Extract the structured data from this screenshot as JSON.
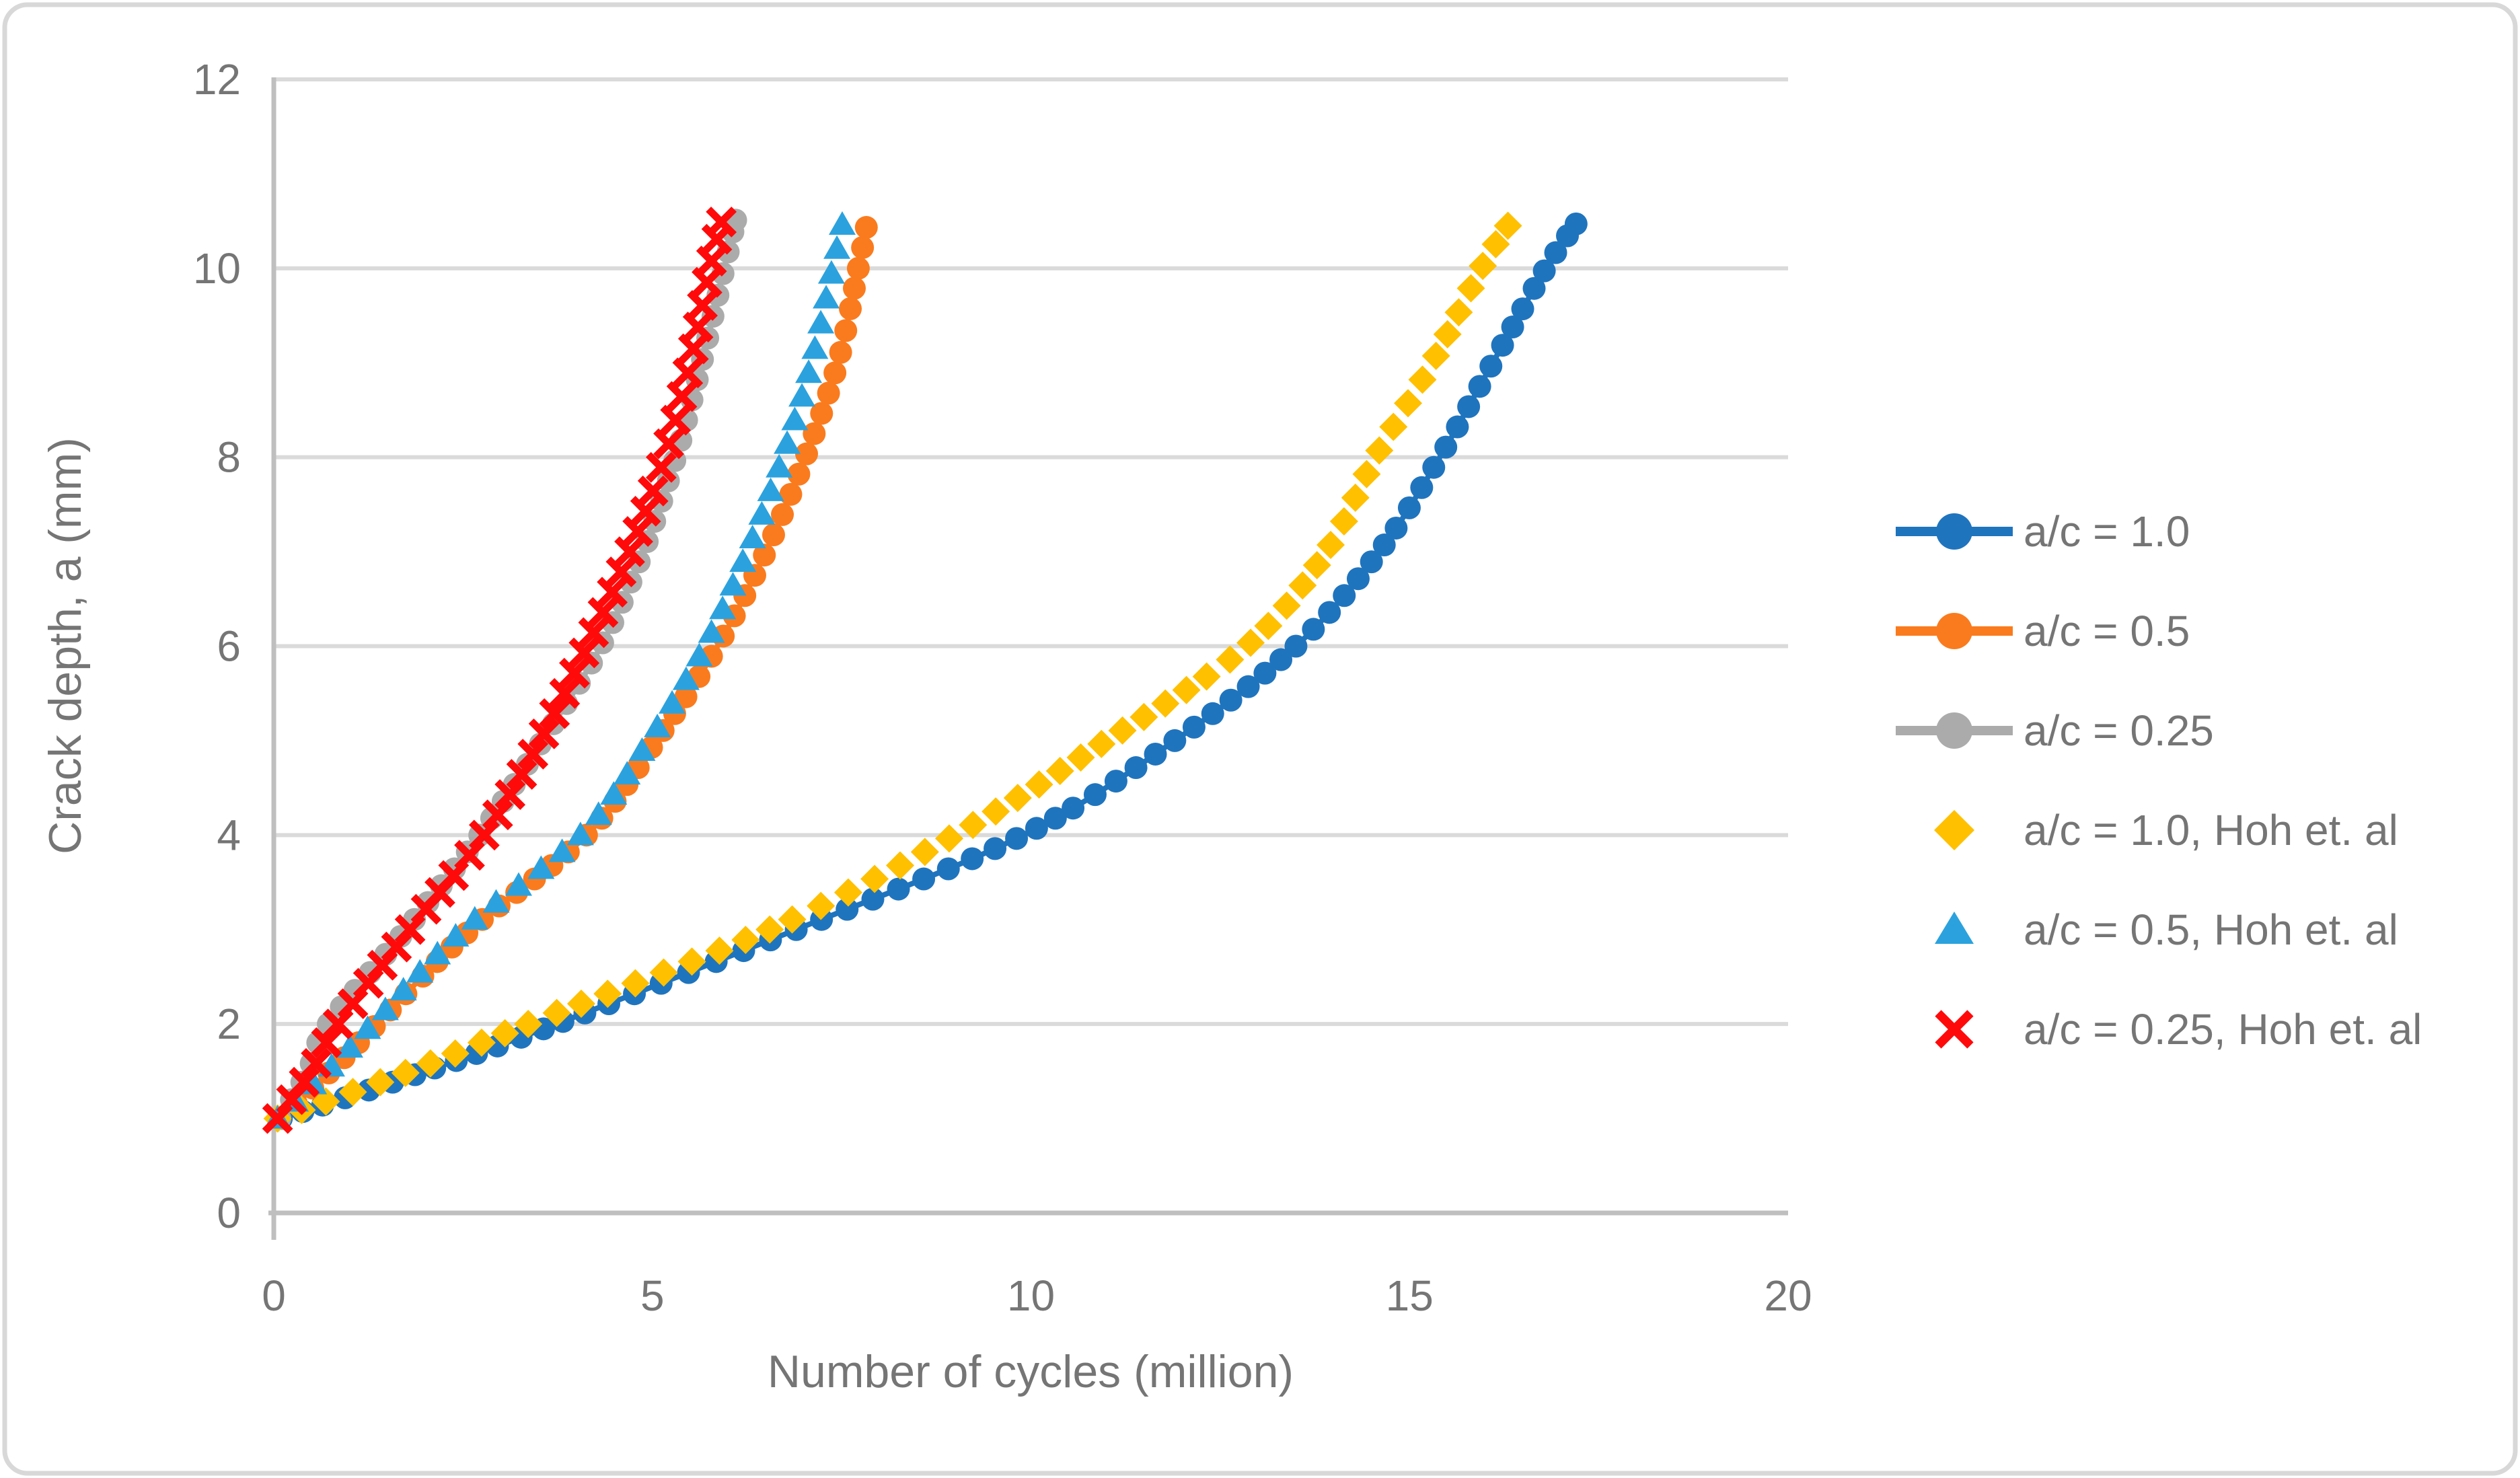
{
  "figure": {
    "background": "#FFFFFF",
    "border_color": "#D8D8D8",
    "grid_color": "#DADADA",
    "axis_color": "#BFBFBF",
    "text_color": "#757575"
  },
  "chart_data": {
    "type": "line",
    "title": "",
    "xlabel": "Number of cycles (million)",
    "ylabel": "Crack depth, a (mm)",
    "xlim": [
      0,
      20
    ],
    "ylim": [
      0,
      12
    ],
    "xticks": [
      0,
      5,
      10,
      15,
      20
    ],
    "yticks": [
      0,
      2,
      4,
      6,
      8,
      10,
      12
    ],
    "grid": "horizontal-only",
    "legend_position": "right-middle",
    "series": [
      {
        "name": "a/c = 1.0",
        "color": "#1F74BE",
        "marker": "circle",
        "line": true,
        "points": [
          [
            0.1,
            1.0
          ],
          [
            2.0,
            1.5
          ],
          [
            3.73,
            2.0
          ],
          [
            6.9,
            3.0
          ],
          [
            9.9,
            4.0
          ],
          [
            11.9,
            5.0
          ],
          [
            13.5,
            6.0
          ],
          [
            14.6,
            7.0
          ],
          [
            15.4,
            8.0
          ],
          [
            16.1,
            9.0
          ],
          [
            16.8,
            10.0
          ],
          [
            17.2,
            10.47
          ]
        ]
      },
      {
        "name": "a/c = 0.5",
        "color": "#FA7B1E",
        "marker": "circle",
        "line": true,
        "points": [
          [
            0.08,
            1.0
          ],
          [
            0.75,
            1.5
          ],
          [
            1.36,
            2.0
          ],
          [
            2.6,
            3.0
          ],
          [
            4.13,
            4.0
          ],
          [
            5.05,
            5.0
          ],
          [
            5.86,
            6.0
          ],
          [
            6.5,
            7.0
          ],
          [
            7.02,
            8.0
          ],
          [
            7.45,
            9.0
          ],
          [
            7.72,
            10.0
          ],
          [
            7.83,
            10.45
          ]
        ]
      },
      {
        "name": "a/c = 0.25",
        "color": "#ABABAB",
        "marker": "circle",
        "line": true,
        "points": [
          [
            0.08,
            1.0
          ],
          [
            0.45,
            1.5
          ],
          [
            0.72,
            2.0
          ],
          [
            1.75,
            3.0
          ],
          [
            2.72,
            4.0
          ],
          [
            3.55,
            5.0
          ],
          [
            4.32,
            6.0
          ],
          [
            4.88,
            7.0
          ],
          [
            5.31,
            8.0
          ],
          [
            5.65,
            9.0
          ],
          [
            5.95,
            10.0
          ],
          [
            6.1,
            10.51
          ]
        ]
      },
      {
        "name": "a/c = 1.0, Hoh et. al",
        "color": "#FFC000",
        "marker": "diamond",
        "line": false,
        "points": [
          [
            0.05,
            1.0
          ],
          [
            1.8,
            1.5
          ],
          [
            3.36,
            2.0
          ],
          [
            6.55,
            3.0
          ],
          [
            9.0,
            4.0
          ],
          [
            11.0,
            5.0
          ],
          [
            12.85,
            6.0
          ],
          [
            13.9,
            7.0
          ],
          [
            14.55,
            8.0
          ],
          [
            15.3,
            9.0
          ],
          [
            15.95,
            10.0
          ],
          [
            16.3,
            10.45
          ]
        ]
      },
      {
        "name": "a/c = 0.5, Hoh et. al",
        "color": "#2BA2DE",
        "marker": "triangle",
        "line": false,
        "points": [
          [
            0.05,
            1.0
          ],
          [
            0.7,
            1.5
          ],
          [
            1.3,
            2.0
          ],
          [
            2.5,
            3.0
          ],
          [
            4.05,
            4.0
          ],
          [
            4.95,
            5.0
          ],
          [
            5.69,
            6.0
          ],
          [
            6.25,
            7.0
          ],
          [
            6.72,
            8.0
          ],
          [
            7.1,
            9.0
          ],
          [
            7.38,
            10.0
          ],
          [
            7.51,
            10.47
          ]
        ]
      },
      {
        "name": "a/c = 0.25, Hoh et. al",
        "color": "#FF0A0A",
        "marker": "x",
        "line": false,
        "points": [
          [
            0.05,
            1.0
          ],
          [
            0.5,
            1.5
          ],
          [
            0.85,
            2.0
          ],
          [
            1.8,
            3.0
          ],
          [
            2.78,
            4.0
          ],
          [
            3.52,
            5.0
          ],
          [
            4.14,
            6.0
          ],
          [
            4.7,
            7.0
          ],
          [
            5.16,
            8.0
          ],
          [
            5.5,
            9.0
          ],
          [
            5.76,
            10.0
          ],
          [
            5.91,
            10.49
          ]
        ]
      }
    ]
  }
}
